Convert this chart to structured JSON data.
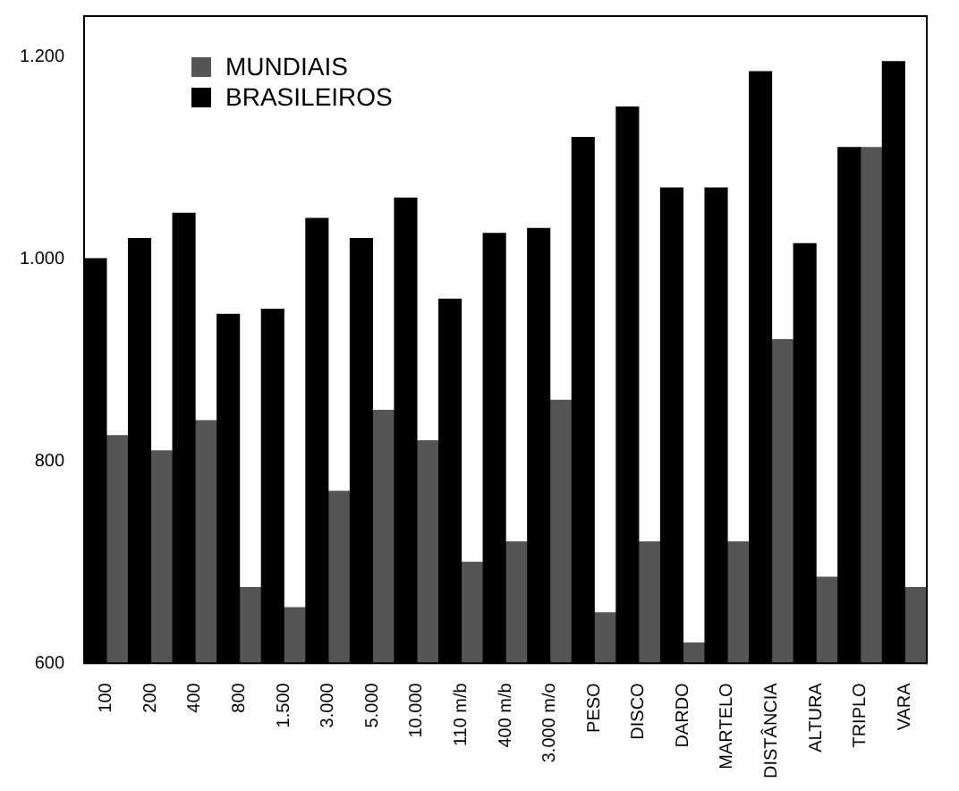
{
  "chart_data": {
    "type": "bar",
    "categories": [
      "100",
      "200",
      "400",
      "800",
      "1.500",
      "3.000",
      "5.000",
      "10.000",
      "110 m/b",
      "400 m/b",
      "3.000 m/o",
      "PESO",
      "DISCO",
      "DARDO",
      "MARTELO",
      "DISTÂNCIA",
      "ALTURA",
      "TRIPLO",
      "VARA"
    ],
    "series": [
      {
        "name": "BRASILEIROS",
        "color": "#000000",
        "values": [
          1000,
          1020,
          1045,
          945,
          950,
          1040,
          1020,
          1060,
          960,
          1025,
          1030,
          1120,
          1150,
          1070,
          1070,
          1185,
          1015,
          1110,
          1195
        ]
      },
      {
        "name": "MUNDIAIS",
        "color": "#555555",
        "values": [
          825,
          810,
          840,
          675,
          655,
          770,
          850,
          820,
          700,
          720,
          860,
          650,
          720,
          620,
          720,
          920,
          685,
          1110,
          675
        ]
      }
    ],
    "ylim": [
      600,
      1240
    ],
    "yticks": [
      {
        "value": 600,
        "label": "600"
      },
      {
        "value": 800,
        "label": "800"
      },
      {
        "value": 1000,
        "label": "1.000"
      },
      {
        "value": 1200,
        "label": "1.200"
      }
    ],
    "legend": "top left",
    "grid": false
  }
}
